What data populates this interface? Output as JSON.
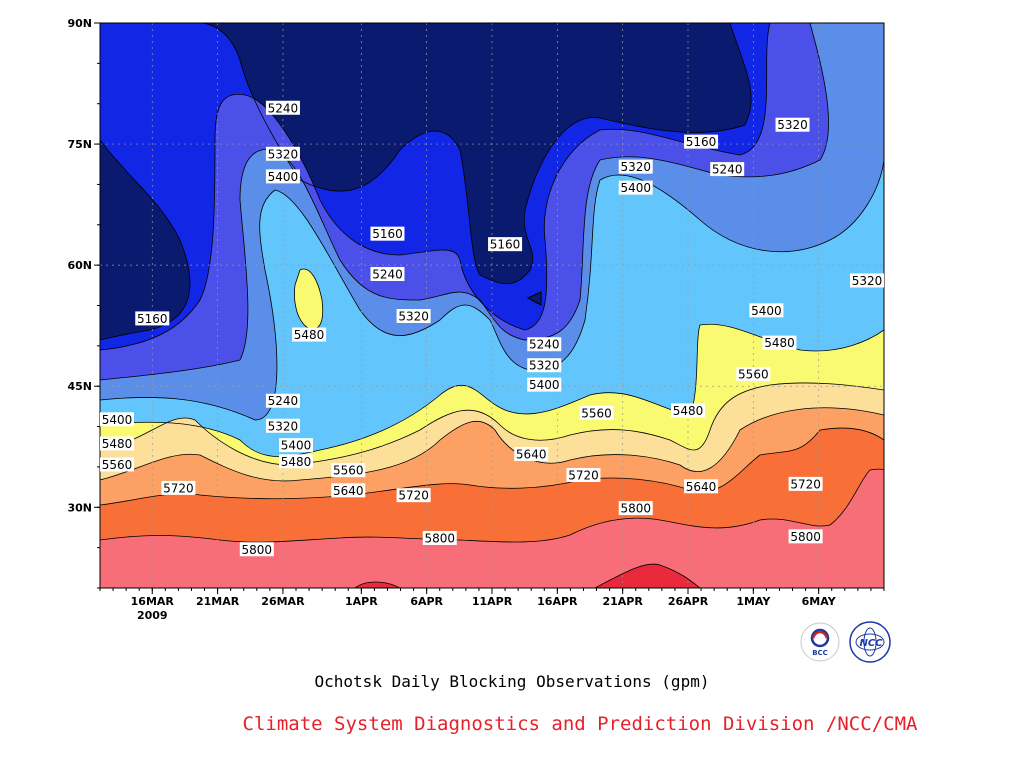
{
  "chart_data": {
    "type": "heatmap",
    "subtype": "filled-contour",
    "title": "Ochotsk Daily Blocking Observations (gpm)",
    "credit": "Climate System Diagnostics and Prediction Division /NCC/CMA",
    "x_axis": {
      "start": "2009-03-12",
      "end": "2009-05-11",
      "tick_labels": [
        "16MAR",
        "21MAR",
        "26MAR",
        "1APR",
        "6APR",
        "11APR",
        "16APR",
        "21APR",
        "26APR",
        "1MAY",
        "6MAY"
      ],
      "tick_dates": [
        "2009-03-16",
        "2009-03-21",
        "2009-03-26",
        "2009-04-01",
        "2009-04-06",
        "2009-04-11",
        "2009-04-16",
        "2009-04-21",
        "2009-04-26",
        "2009-05-01",
        "2009-05-06"
      ],
      "year_label": "2009"
    },
    "y_axis": {
      "range": [
        20,
        90
      ],
      "tick_labels": [
        "30N",
        "45N",
        "60N",
        "75N",
        "90N"
      ],
      "tick_values": [
        30,
        45,
        60,
        75,
        90
      ]
    },
    "grid": true,
    "contour_levels": [
      5160,
      5240,
      5320,
      5400,
      5480,
      5560,
      5640,
      5720,
      5800
    ],
    "level_colors": [
      "#0a1a6e",
      "#1226e6",
      "#4a50e8",
      "#5a8ee8",
      "#62c6fc",
      "#fafa70",
      "#fce09a",
      "#fca064",
      "#f87038",
      "#f86e78",
      "#e82a3c"
    ],
    "contour_labels": [
      {
        "text": "5240",
        "date": "2009-03-26",
        "lat": 79.5
      },
      {
        "text": "5320",
        "date": "2009-03-26",
        "lat": 73.8
      },
      {
        "text": "5400",
        "date": "2009-03-26",
        "lat": 71.0
      },
      {
        "text": "5160",
        "date": "2009-04-03",
        "lat": 63.9
      },
      {
        "text": "5160",
        "date": "2009-04-12",
        "lat": 62.6
      },
      {
        "text": "5240",
        "date": "2009-04-03",
        "lat": 58.9
      },
      {
        "text": "5320",
        "date": "2009-04-05",
        "lat": 53.7
      },
      {
        "text": "5480",
        "date": "2009-03-28",
        "lat": 51.4
      },
      {
        "text": "5160",
        "date": "2009-03-16",
        "lat": 53.4
      },
      {
        "text": "5240",
        "date": "2009-03-26",
        "lat": 43.2
      },
      {
        "text": "5320",
        "date": "2009-03-26",
        "lat": 40.1
      },
      {
        "text": "5400",
        "date": "2009-03-27",
        "lat": 37.7
      },
      {
        "text": "5480",
        "date": "2009-03-27",
        "lat": 35.7
      },
      {
        "text": "5400",
        "date": "2009-03-12",
        "lat": 40.9
      },
      {
        "text": "5480",
        "date": "2009-03-12",
        "lat": 37.9
      },
      {
        "text": "5560",
        "date": "2009-03-13",
        "lat": 35.3
      },
      {
        "text": "5560",
        "date": "2009-03-31",
        "lat": 34.6
      },
      {
        "text": "5640",
        "date": "2009-03-31",
        "lat": 32.1
      },
      {
        "text": "5720",
        "date": "2009-03-18",
        "lat": 32.4
      },
      {
        "text": "5720",
        "date": "2009-04-05",
        "lat": 31.5
      },
      {
        "text": "5800",
        "date": "2009-03-24",
        "lat": 24.8
      },
      {
        "text": "5800",
        "date": "2009-04-07",
        "lat": 26.2
      },
      {
        "text": "5240",
        "date": "2009-04-15",
        "lat": 50.2
      },
      {
        "text": "5320",
        "date": "2009-04-15",
        "lat": 47.6
      },
      {
        "text": "5400",
        "date": "2009-04-15",
        "lat": 45.2
      },
      {
        "text": "5560",
        "date": "2009-04-19",
        "lat": 41.7
      },
      {
        "text": "5640",
        "date": "2009-04-14",
        "lat": 36.6
      },
      {
        "text": "5720",
        "date": "2009-04-18",
        "lat": 34.0
      },
      {
        "text": "5800",
        "date": "2009-04-22",
        "lat": 29.9
      },
      {
        "text": "5320",
        "date": "2009-04-22",
        "lat": 72.2
      },
      {
        "text": "5400",
        "date": "2009-04-22",
        "lat": 69.6
      },
      {
        "text": "5160",
        "date": "2009-04-27",
        "lat": 75.3
      },
      {
        "text": "5240",
        "date": "2009-04-29",
        "lat": 71.9
      },
      {
        "text": "5480",
        "date": "2009-04-26",
        "lat": 42.0
      },
      {
        "text": "5640",
        "date": "2009-04-27",
        "lat": 32.6
      },
      {
        "text": "5320",
        "date": "2009-05-04",
        "lat": 77.4
      },
      {
        "text": "5320",
        "date": "2009-05-10",
        "lat": 58.1
      },
      {
        "text": "5400",
        "date": "2009-05-02",
        "lat": 54.4
      },
      {
        "text": "5480",
        "date": "2009-05-03",
        "lat": 50.4
      },
      {
        "text": "5560",
        "date": "2009-05-01",
        "lat": 46.5
      },
      {
        "text": "5720",
        "date": "2009-05-05",
        "lat": 32.9
      },
      {
        "text": "5800",
        "date": "2009-05-05",
        "lat": 26.4
      }
    ]
  }
}
